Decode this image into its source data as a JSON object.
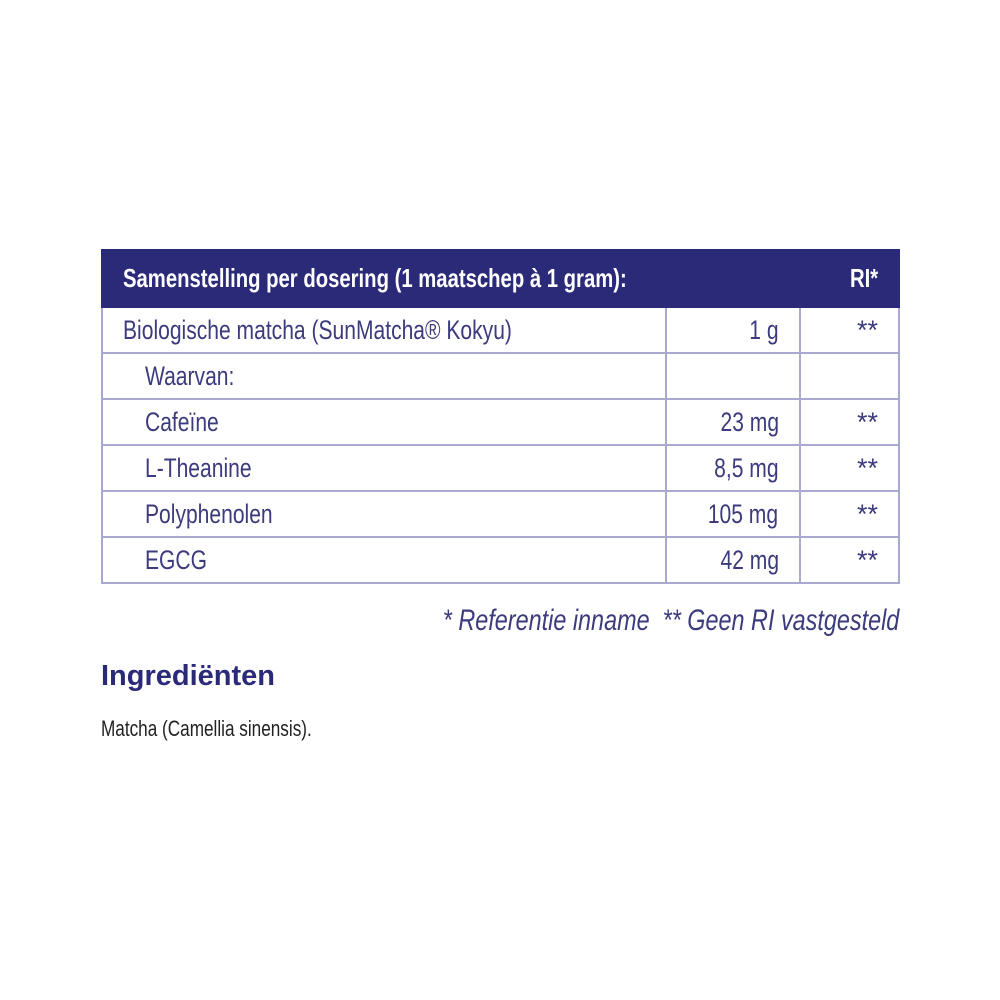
{
  "table": {
    "header": {
      "label": "Samenstelling per dosering (1 maatschep à 1 gram):",
      "ri": "RI*"
    },
    "rows": [
      {
        "name": "Biologische matcha (SunMatcha® Kokyu)",
        "amount": "1 g",
        "ri": "**"
      },
      {
        "name": "Waarvan:",
        "amount": "",
        "ri": ""
      },
      {
        "name": "Cafeïne",
        "amount": "23 mg",
        "ri": "**"
      },
      {
        "name": "L-Theanine",
        "amount": "8,5 mg",
        "ri": "**"
      },
      {
        "name": "Polyphenolen",
        "amount": "105 mg",
        "ri": "**"
      },
      {
        "name": "EGCG",
        "amount": "42 mg",
        "ri": "**"
      }
    ]
  },
  "footnote": "* Referentie inname  ** Geen RI vastgesteld",
  "ingredients": {
    "title": "Ingrediënten",
    "text": "Matcha (Camellia sinensis)."
  },
  "colors": {
    "header_bg": "#2b2a78",
    "text": "#3b3b7d",
    "border": "#a9a9cf"
  }
}
